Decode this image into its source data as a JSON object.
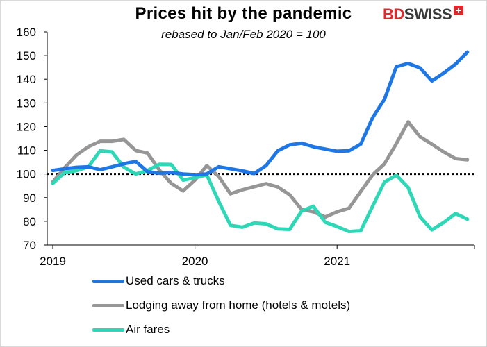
{
  "title": "Prices hit by the pandemic",
  "subtitle": "rebased to Jan/Feb 2020 = 100",
  "logo": {
    "part1": "BD",
    "part2": "SWISS"
  },
  "chart_data": {
    "type": "line",
    "title": "Prices hit by the pandemic",
    "subtitle": "rebased to Jan/Feb 2020 = 100",
    "xlabel": "",
    "ylabel": "",
    "x_ticks": [
      "2019",
      "2020",
      "2021"
    ],
    "y_ticks": [
      70,
      80,
      90,
      100,
      110,
      120,
      130,
      140,
      150,
      160
    ],
    "ylim": [
      70,
      160
    ],
    "x": [
      "2019-01",
      "2019-02",
      "2019-03",
      "2019-04",
      "2019-05",
      "2019-06",
      "2019-07",
      "2019-08",
      "2019-09",
      "2019-10",
      "2019-11",
      "2019-12",
      "2020-01",
      "2020-02",
      "2020-03",
      "2020-04",
      "2020-05",
      "2020-06",
      "2020-07",
      "2020-08",
      "2020-09",
      "2020-10",
      "2020-11",
      "2020-12",
      "2021-01",
      "2021-02",
      "2021-03",
      "2021-04",
      "2021-05",
      "2021-06",
      "2021-07",
      "2021-08",
      "2021-09",
      "2021-10",
      "2021-11",
      "2021-12"
    ],
    "reference_line": {
      "y": 100,
      "style": "dotted"
    },
    "grid": false,
    "legend_position": "bottom",
    "series": [
      {
        "name": "Used cars & trucks",
        "color": "#1f77e6",
        "values": [
          101.5,
          102.2,
          102.8,
          103.0,
          101.8,
          103.0,
          104.3,
          105.3,
          101.0,
          100.3,
          100.6,
          100.0,
          99.7,
          100.0,
          103.0,
          102.2,
          101.3,
          100.2,
          103.5,
          109.8,
          112.3,
          113.0,
          111.5,
          110.5,
          109.6,
          109.8,
          112.6,
          123.8,
          131.5,
          145.3,
          146.7,
          144.8,
          139.3,
          142.6,
          146.4,
          151.5
        ]
      },
      {
        "name": "Lodging away from home (hotels & motels)",
        "color": "#969696",
        "values": [
          96.6,
          102.6,
          108.0,
          111.5,
          113.8,
          113.8,
          114.6,
          109.9,
          108.8,
          101.6,
          96.0,
          92.8,
          97.4,
          103.5,
          99.0,
          91.6,
          93.3,
          94.6,
          95.9,
          94.5,
          91.2,
          85.0,
          84.0,
          81.8,
          84.0,
          85.5,
          92.6,
          99.6,
          104.3,
          112.8,
          122.0,
          115.7,
          112.6,
          109.3,
          106.5,
          106.0
        ]
      },
      {
        "name": "Air fares",
        "color": "#2ed8b6",
        "values": [
          96.0,
          100.6,
          101.4,
          103.0,
          109.8,
          109.3,
          102.9,
          100.0,
          101.5,
          104.1,
          104.0,
          97.4,
          98.4,
          99.6,
          88.5,
          78.3,
          77.5,
          79.3,
          78.9,
          76.8,
          76.6,
          84.3,
          86.4,
          79.6,
          77.8,
          75.7,
          76.0,
          86.4,
          96.6,
          99.5,
          94.3,
          81.9,
          76.4,
          79.5,
          83.3,
          80.9
        ]
      }
    ]
  }
}
